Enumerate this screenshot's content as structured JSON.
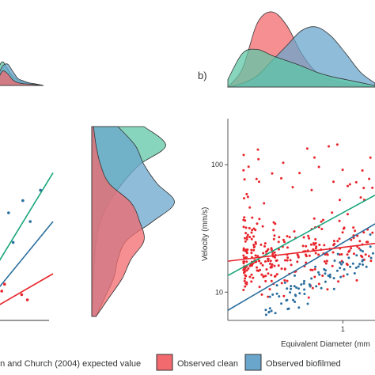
{
  "panel_label_b": "b)",
  "legend": {
    "items": [
      {
        "label": "en and Church (2004) expected value",
        "swatch": "",
        "color": "#2a9d7d"
      },
      {
        "label": "Observed clean",
        "swatch": "box",
        "color": "#f06b6f"
      },
      {
        "label": "Observed biofilmed",
        "swatch": "box",
        "color": "#6aa6cc"
      }
    ]
  },
  "colors": {
    "clean": "#e8232a",
    "biofilm": "#2a6e9e",
    "expected": "#1aa57c",
    "clean_fill": "#f26a6e",
    "biofilm_fill": "#6aa6cc",
    "expected_fill": "#5fc7a5",
    "overlap_fill": "#4a5578"
  },
  "chart_data": [
    {
      "id": "panel-a-partial",
      "type": "scatter",
      "title": "",
      "series": [
        {
          "name": "expected",
          "points": [
            [
              0.05,
              0.27
            ],
            [
              1,
              0.78
            ]
          ]
        },
        {
          "name": "biofilmed",
          "points": [
            [
              0.05,
              0.12
            ],
            [
              1,
              0.5
            ]
          ]
        },
        {
          "name": "clean",
          "points": [
            [
              0.05,
              0.02
            ],
            [
              1,
              0.2
            ]
          ]
        }
      ],
      "scatter": {
        "biofilmed": [
          [
            0.22,
            0.55
          ],
          [
            0.3,
            0.38
          ],
          [
            0.47,
            0.62
          ],
          [
            0.6,
            0.5
          ],
          [
            0.78,
            0.68
          ]
        ],
        "clean": [
          [
            0.1,
            0.1
          ],
          [
            0.15,
            0.14
          ],
          [
            0.45,
            0.08
          ],
          [
            0.55,
            0.05
          ]
        ]
      }
    },
    {
      "id": "panel-b",
      "type": "scatter",
      "panel": "b)",
      "xlabel": "Equivalent Diameter (mm",
      "ylabel": "Velocity (mm/s)",
      "x_scale": "log",
      "y_scale": "log",
      "xlim": [
        0.25,
        1.8
      ],
      "ylim": [
        6,
        230
      ],
      "x_ticks": [
        1
      ],
      "x_tick_labels": [
        "1"
      ],
      "y_ticks": [
        10,
        100
      ],
      "y_tick_labels": [
        "10",
        "100"
      ],
      "grid": false,
      "fit_lines": [
        {
          "name": "expected",
          "x": [
            0.25,
            1.8
          ],
          "y": [
            13.5,
            68
          ]
        },
        {
          "name": "biofilmed",
          "x": [
            0.25,
            1.8
          ],
          "y": [
            7.2,
            41
          ]
        },
        {
          "name": "clean",
          "x": [
            0.25,
            1.8
          ],
          "y": [
            17.5,
            25
          ]
        }
      ],
      "series": [
        {
          "name": "clean",
          "n_points": 340
        },
        {
          "name": "biofilmed",
          "n_points": 90
        }
      ]
    },
    {
      "id": "density-top-left",
      "type": "area",
      "series": [
        {
          "name": "expected",
          "x": [
            0,
            1,
            2,
            3,
            4,
            5,
            6,
            7,
            8,
            9,
            10
          ],
          "y": [
            0,
            0.3,
            0.5,
            0.35,
            0.2,
            0.12,
            0.08,
            0.05,
            0.04,
            0.02,
            0
          ]
        },
        {
          "name": "biofilmed",
          "x": [
            0,
            1,
            2,
            3,
            4,
            5,
            6,
            7,
            8,
            9,
            10
          ],
          "y": [
            0,
            0.18,
            0.4,
            0.45,
            0.3,
            0.15,
            0.1,
            0.06,
            0.04,
            0.02,
            0
          ]
        },
        {
          "name": "clean",
          "x": [
            0,
            1,
            2,
            3,
            4,
            5,
            6,
            7,
            8,
            9,
            10
          ],
          "y": [
            0,
            0.1,
            0.3,
            0.25,
            0.12,
            0.06,
            0.04,
            0.03,
            0.02,
            0.01,
            0
          ]
        }
      ]
    },
    {
      "id": "density-top-b",
      "type": "area",
      "series": [
        {
          "name": "clean",
          "x": [
            0,
            1,
            2,
            3,
            4,
            5,
            6,
            7,
            8,
            9,
            10
          ],
          "y": [
            0,
            0.25,
            0.85,
            1.0,
            0.82,
            0.45,
            0.2,
            0.1,
            0.05,
            0.02,
            0
          ]
        },
        {
          "name": "biofilmed",
          "x": [
            0,
            1,
            2,
            3,
            4,
            5,
            6,
            7,
            8,
            9,
            10
          ],
          "y": [
            0,
            0.05,
            0.15,
            0.35,
            0.55,
            0.75,
            0.8,
            0.68,
            0.45,
            0.2,
            0.05
          ]
        },
        {
          "name": "expected",
          "x": [
            0,
            1,
            2,
            3,
            4,
            5,
            6,
            7,
            8,
            9,
            10
          ],
          "y": [
            0.1,
            0.45,
            0.5,
            0.42,
            0.35,
            0.28,
            0.2,
            0.14,
            0.1,
            0.06,
            0.02
          ]
        }
      ]
    },
    {
      "id": "density-right-a",
      "type": "area",
      "series": [
        {
          "name": "expected",
          "x": [
            0,
            1,
            2,
            3,
            4,
            5,
            6,
            7,
            8,
            9,
            10
          ],
          "y": [
            0.6,
            0.85,
            0.55,
            0.35,
            0.2,
            0.1,
            0.05,
            0.03,
            0.02,
            0.01,
            0
          ]
        },
        {
          "name": "biofilmed",
          "x": [
            0,
            1,
            2,
            3,
            4,
            5,
            6,
            7,
            8,
            9,
            10
          ],
          "y": [
            0.3,
            0.5,
            0.6,
            0.75,
            0.95,
            0.7,
            0.4,
            0.3,
            0.25,
            0.15,
            0.05
          ]
        },
        {
          "name": "clean",
          "x": [
            0,
            1,
            2,
            3,
            4,
            5,
            6,
            7,
            8,
            9,
            10
          ],
          "y": [
            0.02,
            0.05,
            0.1,
            0.2,
            0.45,
            0.55,
            0.6,
            0.45,
            0.35,
            0.2,
            0.05
          ]
        }
      ]
    }
  ]
}
